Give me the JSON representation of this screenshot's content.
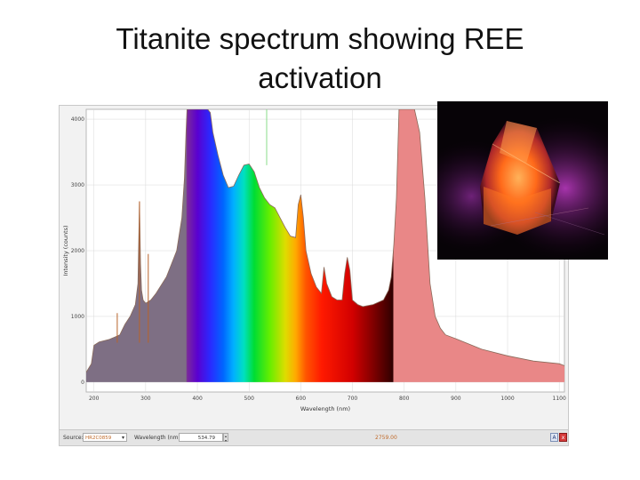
{
  "slide": {
    "title_line1": "Titanite spectrum showing REE",
    "title_line2": "activation"
  },
  "chart_data": {
    "type": "line",
    "title": "",
    "xlabel": "Wavelength (nm)",
    "ylabel": "Intensity (counts)",
    "xlim": [
      185,
      1110
    ],
    "ylim": [
      -150,
      4150
    ],
    "x_ticks": [
      200,
      300,
      400,
      500,
      600,
      700,
      800,
      900,
      1000,
      1100
    ],
    "y_ticks": [
      0,
      1000,
      2000,
      3000,
      4000
    ],
    "grid": true,
    "fill": "visible spectrum gradient under curve; grey in UV, pink in near-IR",
    "cursor_wavelength": 534.79,
    "series": [
      {
        "name": "",
        "x": [
          185,
          195,
          200,
          210,
          230,
          250,
          255,
          260,
          270,
          280,
          285,
          288,
          290,
          292,
          295,
          300,
          310,
          320,
          340,
          360,
          370,
          375,
          378,
          380,
          400,
          420,
          425,
          430,
          440,
          450,
          460,
          470,
          480,
          490,
          500,
          510,
          520,
          530,
          540,
          550,
          560,
          570,
          580,
          590,
          595,
          600,
          605,
          610,
          620,
          630,
          640,
          645,
          650,
          660,
          670,
          680,
          685,
          690,
          695,
          700,
          710,
          720,
          740,
          760,
          770,
          775,
          780,
          785,
          790,
          800,
          820,
          830,
          840,
          850,
          860,
          870,
          880,
          900,
          950,
          1000,
          1050,
          1100,
          1110
        ],
        "y": [
          150,
          280,
          560,
          610,
          650,
          720,
          800,
          880,
          1000,
          1180,
          1500,
          2750,
          1800,
          1400,
          1250,
          1200,
          1250,
          1350,
          1600,
          2000,
          2500,
          3100,
          3800,
          4150,
          4150,
          4150,
          4100,
          3800,
          3450,
          3150,
          2960,
          2980,
          3150,
          3300,
          3320,
          3200,
          2960,
          2800,
          2700,
          2650,
          2500,
          2350,
          2220,
          2200,
          2700,
          2850,
          2500,
          2000,
          1650,
          1450,
          1350,
          1750,
          1500,
          1300,
          1250,
          1250,
          1650,
          1900,
          1700,
          1250,
          1180,
          1150,
          1180,
          1250,
          1400,
          1600,
          2100,
          2800,
          4150,
          4150,
          4150,
          3800,
          2800,
          1500,
          1000,
          820,
          720,
          660,
          500,
          400,
          320,
          280,
          250
        ],
        "color": "#8a6a5a"
      }
    ],
    "annotations": [
      {
        "x": 245,
        "y": 1050,
        "kind": "spike"
      },
      {
        "x": 288,
        "y": 2750,
        "kind": "spike"
      },
      {
        "x": 305,
        "y": 1950,
        "kind": "spike"
      },
      {
        "x": 534,
        "y": 4150,
        "kind": "cursor"
      }
    ]
  },
  "status_bar": {
    "source_label": "Source:",
    "source_value": "HR2C0859",
    "wavelength_label": "Wavelength (nm):",
    "wavelength_value": "534.79",
    "count_value": "2759.00",
    "icon_a": "A",
    "icon_b": "x"
  },
  "photo": {
    "description_icon": "titanite-crystal-photo"
  },
  "colors": {
    "uv_fill": "#7e6f84",
    "ir_fill": "#e98787",
    "cursor_line": "#88dd88",
    "grid": "#d8d8d8"
  }
}
